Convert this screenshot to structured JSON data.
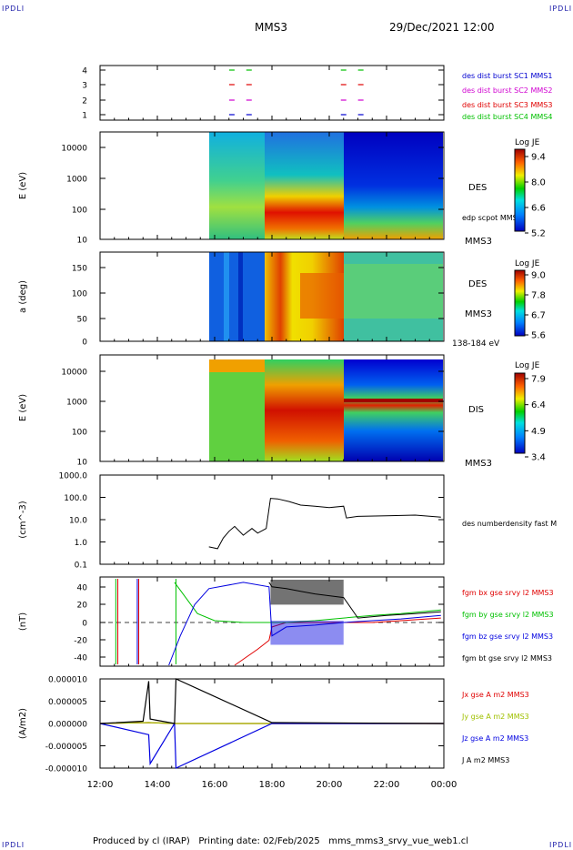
{
  "corners": {
    "tl": "IPDLI",
    "tr": "IPDLI",
    "bl": "IPDLI",
    "br": "IPDLI"
  },
  "header": {
    "spacecraft": "MMS3",
    "datetime": "29/Dec/2021 12:00"
  },
  "footer": {
    "text": "Produced by cl (IRAP)   Printing date: 02/Feb/2025   mms_mms3_srvy_vue_web1.cl"
  },
  "colors": {
    "sc1": "#0000d0",
    "sc2": "#d000d0",
    "sc3": "#e00000",
    "sc4": "#00c000",
    "bx": "#e00000",
    "by": "#00c000",
    "bz": "#0000e0",
    "bt": "#000000"
  },
  "x_axis": {
    "range_hours": [
      12,
      24
    ],
    "ticks": [
      "12:00",
      "14:00",
      "16:00",
      "18:00",
      "20:00",
      "22:00",
      "00:00"
    ]
  },
  "panels": {
    "burst": {
      "type": "marker",
      "yticks": [
        "4",
        "3",
        "2",
        "1"
      ],
      "labels": [
        "des dist burst SC1 MMS1",
        "des dist burst SC2 MMS2",
        "des dist burst SC3 MMS3",
        "des dist burst SC4 MMS4"
      ],
      "marker_times": [
        16.6,
        17.2,
        20.5,
        21.1
      ]
    },
    "des_energy": {
      "type": "heatmap",
      "ylabel": "E (eV)",
      "yticks": [
        "10000",
        "1000",
        "100",
        "10"
      ],
      "label": "DES",
      "sublabel": "MMS3",
      "overlay_label": "edp scpot MMS3",
      "colorbar": {
        "title": "Log JE",
        "ticks": [
          "9.4",
          "8.0",
          "6.6",
          "5.2"
        ]
      }
    },
    "des_pitch": {
      "type": "heatmap",
      "ylabel": "a (deg)",
      "yticks": [
        "150",
        "100",
        "50",
        "0"
      ],
      "label": "DES",
      "sublabel": "MMS3",
      "energy_band": "138-184 eV",
      "colorbar": {
        "title": "Log JE",
        "ticks": [
          "9.0",
          "7.8",
          "6.7",
          "5.6"
        ]
      }
    },
    "dis_energy": {
      "type": "heatmap",
      "ylabel": "E (eV)",
      "yticks": [
        "10000",
        "1000",
        "100",
        "10"
      ],
      "label": "DIS",
      "sublabel": "MMS3",
      "colorbar": {
        "title": "Log JE",
        "ticks": [
          "7.9",
          "6.4",
          "4.9",
          "3.4"
        ]
      }
    },
    "density": {
      "type": "line",
      "ylabel": "(cm^-3)",
      "log": true,
      "yticks": [
        "1000.0",
        "100.0",
        "10.0",
        "1.0",
        "0.1"
      ],
      "series_label": "des numberdensity fast M"
    },
    "bfield": {
      "type": "line",
      "ylabel": "(nT)",
      "yticks": [
        "40",
        "20",
        "0",
        "-20",
        "-40"
      ],
      "series_labels": [
        "fgm bx gse srvy l2 MMS3",
        "fgm by gse srvy l2 MMS3",
        "fgm bz gse srvy l2 MMS3",
        "fgm bt gse srvy l2 MMS3"
      ]
    },
    "current": {
      "type": "line",
      "ylabel": "(A/m2)",
      "yticks": [
        "0.000010",
        "0.000005",
        "0.000000",
        "-0.000005",
        "-0.000010"
      ],
      "series_labels": [
        "Jx gse A m2 MMS3",
        "Jy gse A m2 MMS3",
        "Jz gse A m2 MMS3",
        "J A m2 MMS3"
      ]
    }
  },
  "chart_data": [
    {
      "type": "line",
      "title": "",
      "xlabel": "",
      "ylabel": "(cm^-3)",
      "series": [
        {
          "name": "des numberdensity fast M",
          "x": [
            15.8,
            16.1,
            16.3,
            16.5,
            16.7,
            17.0,
            17.3,
            17.5,
            17.8,
            17.95,
            18.2,
            18.6,
            19.0,
            19.5,
            20.0,
            20.5,
            20.6,
            21.0,
            22.0,
            23.0,
            23.9
          ],
          "values": [
            0.6,
            0.5,
            1.5,
            3,
            5,
            2,
            4,
            2.5,
            4,
            90,
            85,
            65,
            45,
            40,
            35,
            40,
            12,
            14,
            15,
            16,
            13
          ]
        }
      ],
      "ylim": [
        0.1,
        1000
      ]
    },
    {
      "type": "line",
      "title": "",
      "xlabel": "",
      "ylabel": "(nT)",
      "series": [
        {
          "name": "fgm bx gse srvy l2 MMS3",
          "x": [
            16.7,
            17.5,
            17.9,
            18.0,
            18.5,
            19.5,
            20.5,
            21.5,
            22.5,
            23.9
          ],
          "values": [
            -48,
            -30,
            -20,
            -5,
            0,
            0,
            0,
            0,
            2,
            5
          ]
        },
        {
          "name": "fgm by gse srvy l2 MMS3",
          "x": [
            14.6,
            15.4,
            16.0,
            17.0,
            17.9,
            18.5,
            19.5,
            20.5,
            21.5,
            22.5,
            23.9
          ],
          "values": [
            45,
            10,
            2,
            0,
            0,
            0,
            2,
            5,
            8,
            10,
            14
          ]
        },
        {
          "name": "fgm bz gse srvy l2 MMS3",
          "x": [
            14.4,
            14.8,
            15.3,
            15.8,
            17.0,
            17.9,
            18.0,
            18.5,
            19.5,
            20.5,
            21.5,
            22.5,
            23.9
          ],
          "values": [
            -48,
            -15,
            20,
            38,
            45,
            40,
            -15,
            -5,
            -3,
            0,
            2,
            4,
            8
          ]
        },
        {
          "name": "fgm bt gse srvy l2 MMS3",
          "x": [
            17.9,
            18.0,
            18.5,
            19.0,
            19.5,
            20.0,
            20.5,
            21.0,
            22.0,
            23.0,
            23.9
          ],
          "values": [
            45,
            40,
            38,
            35,
            32,
            30,
            28,
            5,
            8,
            10,
            12
          ]
        }
      ],
      "ylim": [
        -50,
        50
      ]
    },
    {
      "type": "line",
      "title": "",
      "xlabel": "",
      "ylabel": "(A/m2)",
      "series": [
        {
          "name": "Jx gse A m2 MMS3",
          "x": [
            12,
            13.7,
            14.6,
            18.0,
            24
          ],
          "values": [
            0,
            2e-07,
            0,
            0,
            0
          ]
        },
        {
          "name": "Jy gse A m2 MMS3",
          "x": [
            12,
            13.7,
            14.6,
            18.0,
            24
          ],
          "values": [
            0,
            2e-07,
            0,
            0,
            0
          ]
        },
        {
          "name": "Jz gse A m2 MMS3",
          "x": [
            12,
            13.7,
            13.75,
            14.6,
            14.65,
            18.0,
            24
          ],
          "values": [
            0,
            -2.5e-06,
            -9e-06,
            0,
            -1e-05,
            0,
            0
          ]
        },
        {
          "name": "J A m2 MMS3",
          "x": [
            12,
            13.5,
            13.7,
            13.75,
            14.6,
            14.65,
            18.0,
            24
          ],
          "values": [
            0,
            5e-07,
            9.5e-06,
            1e-06,
            0,
            1e-05,
            2e-07,
            0
          ]
        }
      ],
      "ylim": [
        -1e-05,
        1e-05
      ]
    }
  ]
}
